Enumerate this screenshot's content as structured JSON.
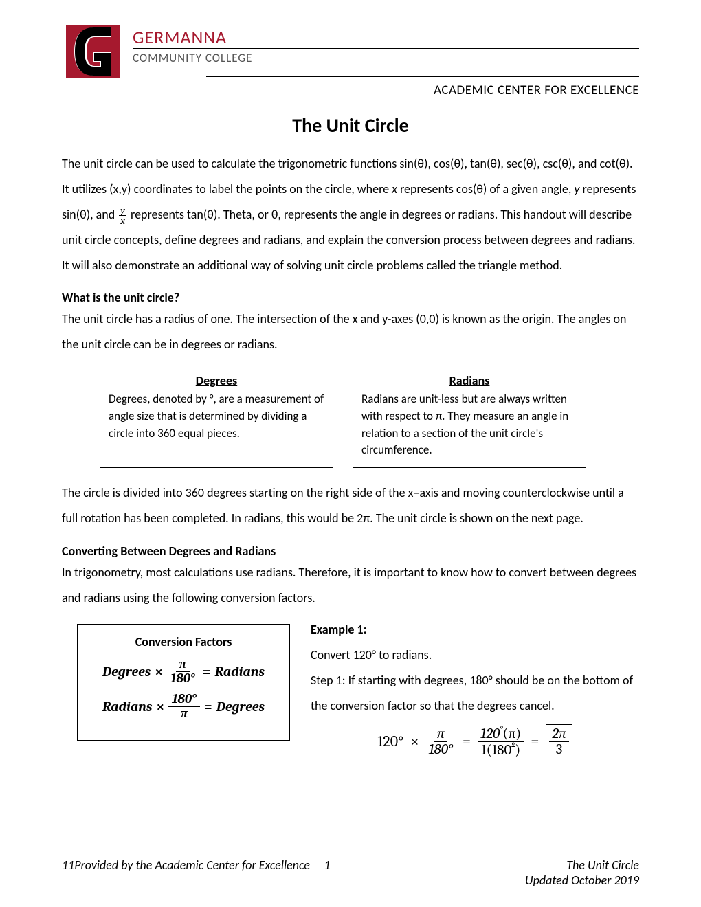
{
  "brand": {
    "line1": "GERMANNA",
    "line2": "COMMUNITY COLLEGE",
    "logo_bg": "#a6192e",
    "logo_letter": "G"
  },
  "subheader": "ACADEMIC CENTER FOR EXCELLENCE",
  "title": "The Unit Circle",
  "intro_html": "The unit circle can be used to calculate the trigonometric functions sin(θ), cos(θ), tan(θ), sec(θ), csc(θ), and cot(θ). It utilizes (x,y) coordinates to label the points on the circle, where <span class='italic'>x</span> represents cos(θ) of a given angle, <span class='italic'>y</span> represents sin(θ), and <span class='inline-frac'><span class='num'>y</span><span class='den'>x</span></span> represents tan(θ). Theta, or θ, represents the angle in degrees or radians. This handout will describe unit circle concepts, define degrees and radians, and explain the conversion process between degrees and radians. It will also demonstrate an additional way of solving unit circle problems called the triangle method.",
  "sec1_head": "What is the unit circle?",
  "sec1_body": "The unit circle has a radius of one. The intersection of the x and y-axes (0,0) is known as the origin. The angles on the unit circle can be in degrees or radians.",
  "degrees_box": {
    "title": "Degrees",
    "body": "Degrees, denoted by °, are a measurement of angle size that is determined by dividing a circle into 360 equal pieces."
  },
  "radians_box": {
    "title": "Radians",
    "body": "Radians are unit-less but are always written with respect to π. They measure an angle in relation to a section of the unit circle's circumference."
  },
  "sec1_followup": "The circle is divided into 360 degrees starting on the right side of the x–axis and moving counterclockwise until a full rotation has been completed. In radians, this would be 2π. The unit circle is shown on the next page.",
  "sec2_head": "Converting Between Degrees and Radians",
  "sec2_body": "In trigonometry, most calculations use radians. Therefore, it is important to know how to convert between degrees and radians using the following conversion factors.",
  "conv_box": {
    "title": "Conversion Factors",
    "f1_left": "Degrees",
    "f1_num": "π",
    "f1_den": "180°",
    "f1_right": "Radians",
    "f2_left": "Radians",
    "f2_num": "180°",
    "f2_den": "π",
    "f2_right": "Degrees"
  },
  "example": {
    "head": "Example 1:",
    "prompt": "Convert 120° to radians.",
    "step1": "Step 1: If starting with degrees, 180° should be on the bottom of the conversion factor so that the degrees cancel.",
    "lhs": "120°",
    "frac1_num": "π",
    "frac1_den": "180°",
    "frac2_num_a": "120",
    "frac2_num_b": "(π)",
    "frac2_den_a": "1(180",
    "frac2_den_b": ")",
    "ans_num": "2π",
    "ans_den": "3"
  },
  "footer": {
    "left": "11Provided by the Academic Center for Excellence",
    "page": "1",
    "right1": "The Unit Circle",
    "right2": "Updated October 2019"
  },
  "colors": {
    "brand_red": "#a6192e",
    "text": "#000000",
    "bg": "#ffffff"
  },
  "typography": {
    "body_fontsize_pt": 13,
    "title_fontsize_pt": 21,
    "line_height": 2.05
  }
}
